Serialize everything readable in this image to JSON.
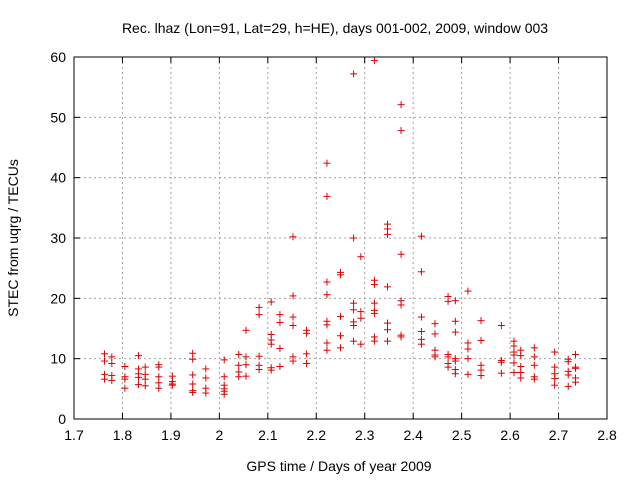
{
  "chart_data": {
    "type": "scatter",
    "title": "Rec. lhaz (Lon=91, Lat=29, h=HE), days 001-002, 2009, window 003",
    "xlabel": "GPS time / Days of year 2009",
    "ylabel": "STEC from uqrg / TECUs",
    "xlim": [
      1.7,
      2.8
    ],
    "ylim": [
      0,
      60
    ],
    "xticks": [
      1.7,
      1.8,
      1.9,
      2.0,
      2.1,
      2.2,
      2.3,
      2.4,
      2.5,
      2.6,
      2.7,
      2.8
    ],
    "xtick_labels": [
      "1.7",
      "1.8",
      "1.9",
      "2",
      "2.1",
      "2.2",
      "2.3",
      "2.4",
      "2.5",
      "2.6",
      "2.7",
      "2.8"
    ],
    "yticks": [
      0,
      10,
      20,
      30,
      40,
      50,
      60
    ],
    "ytick_labels": [
      "0",
      "10",
      "20",
      "30",
      "40",
      "50",
      "60"
    ],
    "grid": true,
    "marker": "+",
    "color": "#e00000",
    "series": [
      {
        "name": "STEC",
        "points": [
          [
            1.763,
            10.8
          ],
          [
            1.763,
            9.6
          ],
          [
            1.763,
            7.4
          ],
          [
            1.763,
            6.6
          ],
          [
            1.778,
            10.3
          ],
          [
            1.778,
            9.2
          ],
          [
            1.778,
            7.2
          ],
          [
            1.778,
            6.4
          ],
          [
            1.805,
            8.7
          ],
          [
            1.805,
            7.0
          ],
          [
            1.805,
            6.6
          ],
          [
            1.805,
            5.1
          ],
          [
            1.833,
            10.5
          ],
          [
            1.833,
            8.3
          ],
          [
            1.833,
            7.5
          ],
          [
            1.833,
            6.9
          ],
          [
            1.833,
            5.7
          ],
          [
            1.847,
            8.6
          ],
          [
            1.847,
            7.4
          ],
          [
            1.847,
            6.6
          ],
          [
            1.847,
            5.5
          ],
          [
            1.875,
            9.0
          ],
          [
            1.875,
            8.6
          ],
          [
            1.875,
            7.0
          ],
          [
            1.875,
            6.0
          ],
          [
            1.875,
            5.1
          ],
          [
            1.903,
            7.1
          ],
          [
            1.903,
            6.2
          ],
          [
            1.903,
            5.8
          ],
          [
            1.903,
            5.6
          ],
          [
            1.945,
            10.9
          ],
          [
            1.945,
            9.9
          ],
          [
            1.945,
            7.3
          ],
          [
            1.945,
            5.8
          ],
          [
            1.945,
            4.7
          ],
          [
            1.945,
            4.4
          ],
          [
            1.972,
            8.3
          ],
          [
            1.972,
            6.8
          ],
          [
            1.972,
            5.1
          ],
          [
            1.972,
            4.3
          ],
          [
            2.01,
            9.8
          ],
          [
            2.01,
            7.0
          ],
          [
            2.01,
            5.6
          ],
          [
            2.01,
            5.0
          ],
          [
            2.01,
            4.6
          ],
          [
            2.01,
            4.1
          ],
          [
            2.04,
            10.7
          ],
          [
            2.04,
            8.9
          ],
          [
            2.04,
            7.8
          ],
          [
            2.04,
            7.0
          ],
          [
            2.055,
            14.7
          ],
          [
            2.055,
            10.3
          ],
          [
            2.055,
            9.0
          ],
          [
            2.055,
            7.1
          ],
          [
            2.082,
            18.5
          ],
          [
            2.082,
            17.3
          ],
          [
            2.082,
            10.4
          ],
          [
            2.082,
            8.9
          ],
          [
            2.082,
            8.2
          ],
          [
            2.107,
            19.4
          ],
          [
            2.107,
            14.0
          ],
          [
            2.107,
            13.1
          ],
          [
            2.107,
            12.4
          ],
          [
            2.107,
            8.5
          ],
          [
            2.107,
            8.1
          ],
          [
            2.125,
            17.3
          ],
          [
            2.125,
            16.0
          ],
          [
            2.125,
            11.7
          ],
          [
            2.125,
            8.7
          ],
          [
            2.152,
            30.2
          ],
          [
            2.152,
            20.4
          ],
          [
            2.152,
            16.9
          ],
          [
            2.152,
            15.5
          ],
          [
            2.152,
            10.3
          ],
          [
            2.152,
            9.6
          ],
          [
            2.18,
            14.7
          ],
          [
            2.18,
            14.2
          ],
          [
            2.18,
            10.8
          ],
          [
            2.18,
            9.2
          ],
          [
            2.222,
            42.4
          ],
          [
            2.222,
            36.9
          ],
          [
            2.222,
            22.7
          ],
          [
            2.222,
            20.6
          ],
          [
            2.222,
            16.2
          ],
          [
            2.222,
            15.6
          ],
          [
            2.222,
            12.6
          ],
          [
            2.222,
            11.4
          ],
          [
            2.25,
            24.3
          ],
          [
            2.25,
            23.9
          ],
          [
            2.25,
            17.0
          ],
          [
            2.25,
            13.8
          ],
          [
            2.25,
            11.8
          ],
          [
            2.277,
            57.2
          ],
          [
            2.277,
            30.0
          ],
          [
            2.277,
            19.2
          ],
          [
            2.277,
            18.1
          ],
          [
            2.277,
            16.1
          ],
          [
            2.277,
            15.5
          ],
          [
            2.277,
            12.9
          ],
          [
            2.292,
            26.9
          ],
          [
            2.292,
            17.8
          ],
          [
            2.292,
            16.7
          ],
          [
            2.292,
            12.4
          ],
          [
            2.32,
            59.4
          ],
          [
            2.32,
            23.0
          ],
          [
            2.32,
            22.3
          ],
          [
            2.32,
            19.2
          ],
          [
            2.32,
            18.0
          ],
          [
            2.32,
            17.5
          ],
          [
            2.32,
            13.6
          ],
          [
            2.32,
            12.9
          ],
          [
            2.347,
            32.3
          ],
          [
            2.347,
            31.5
          ],
          [
            2.347,
            30.6
          ],
          [
            2.347,
            21.9
          ],
          [
            2.347,
            15.9
          ],
          [
            2.347,
            14.8
          ],
          [
            2.347,
            12.9
          ],
          [
            2.375,
            52.1
          ],
          [
            2.375,
            47.8
          ],
          [
            2.375,
            27.3
          ],
          [
            2.375,
            19.6
          ],
          [
            2.375,
            18.9
          ],
          [
            2.375,
            13.9
          ],
          [
            2.375,
            13.6
          ],
          [
            2.417,
            30.3
          ],
          [
            2.417,
            24.4
          ],
          [
            2.417,
            16.9
          ],
          [
            2.417,
            14.5
          ],
          [
            2.417,
            13.2
          ],
          [
            2.417,
            12.4
          ],
          [
            2.445,
            15.8
          ],
          [
            2.445,
            14.1
          ],
          [
            2.445,
            11.4
          ],
          [
            2.445,
            10.6
          ],
          [
            2.445,
            10.3
          ],
          [
            2.472,
            20.3
          ],
          [
            2.472,
            19.5
          ],
          [
            2.472,
            10.7
          ],
          [
            2.472,
            10.3
          ],
          [
            2.472,
            9.2
          ],
          [
            2.472,
            8.6
          ],
          [
            2.487,
            19.6
          ],
          [
            2.487,
            16.2
          ],
          [
            2.487,
            14.4
          ],
          [
            2.487,
            10.0
          ],
          [
            2.487,
            9.6
          ],
          [
            2.487,
            8.2
          ],
          [
            2.487,
            7.5
          ],
          [
            2.513,
            21.2
          ],
          [
            2.513,
            12.6
          ],
          [
            2.513,
            11.6
          ],
          [
            2.513,
            10.0
          ],
          [
            2.513,
            7.4
          ],
          [
            2.54,
            16.3
          ],
          [
            2.54,
            13.0
          ],
          [
            2.54,
            8.9
          ],
          [
            2.54,
            8.1
          ],
          [
            2.54,
            7.2
          ],
          [
            2.582,
            15.5
          ],
          [
            2.582,
            9.7
          ],
          [
            2.582,
            9.4
          ],
          [
            2.582,
            7.6
          ],
          [
            2.608,
            12.9
          ],
          [
            2.608,
            12.1
          ],
          [
            2.608,
            11.1
          ],
          [
            2.608,
            10.6
          ],
          [
            2.608,
            9.3
          ],
          [
            2.608,
            7.7
          ],
          [
            2.622,
            11.4
          ],
          [
            2.622,
            10.5
          ],
          [
            2.622,
            8.7
          ],
          [
            2.622,
            7.7
          ],
          [
            2.622,
            6.8
          ],
          [
            2.65,
            11.8
          ],
          [
            2.65,
            10.3
          ],
          [
            2.65,
            8.9
          ],
          [
            2.65,
            7.0
          ],
          [
            2.65,
            6.6
          ],
          [
            2.692,
            11.1
          ],
          [
            2.692,
            8.6
          ],
          [
            2.692,
            7.5
          ],
          [
            2.692,
            6.7
          ],
          [
            2.692,
            5.6
          ],
          [
            2.72,
            9.9
          ],
          [
            2.72,
            9.5
          ],
          [
            2.72,
            7.9
          ],
          [
            2.72,
            7.3
          ],
          [
            2.72,
            5.4
          ],
          [
            2.735,
            10.7
          ],
          [
            2.735,
            8.6
          ],
          [
            2.735,
            8.4
          ],
          [
            2.735,
            6.8
          ],
          [
            2.735,
            6.1
          ]
        ]
      }
    ]
  }
}
